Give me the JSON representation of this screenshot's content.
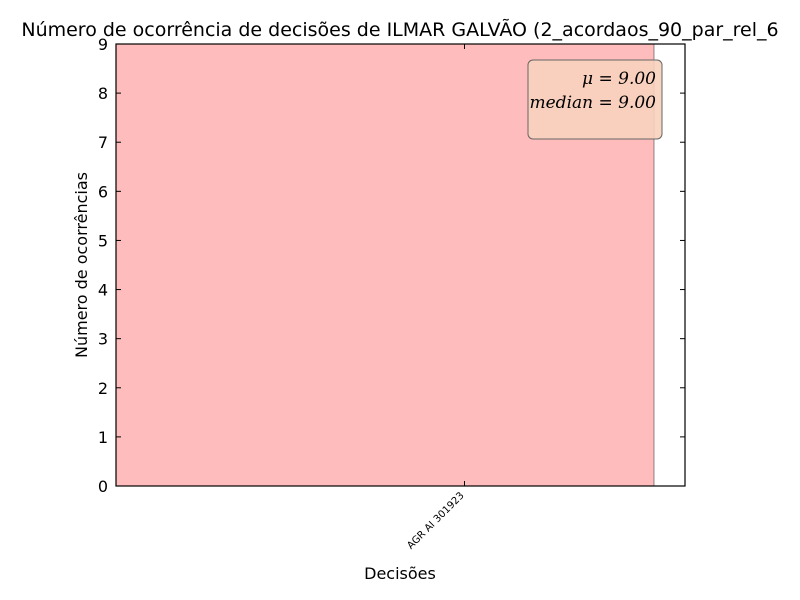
{
  "chart_data": {
    "type": "bar",
    "title": "Número de ocorrência de decisões de ILMAR GALVÃO (2_acordaos_90_par_rel_6",
    "xlabel": "Decisões",
    "ylabel": "Número de ocorrências",
    "categories": [
      "AGR AI 301923"
    ],
    "values": [
      9
    ],
    "ylim": [
      0,
      9
    ],
    "yticks": [
      "0",
      "1",
      "2",
      "3",
      "4",
      "5",
      "6",
      "7",
      "8",
      "9"
    ],
    "grid": false,
    "bar_color": "#ffbcbc",
    "stats_box": {
      "mean_text": "μ = 9.00",
      "median_text": "median = 9.00",
      "placement": "top-right",
      "background": "#f7d2bd"
    }
  }
}
